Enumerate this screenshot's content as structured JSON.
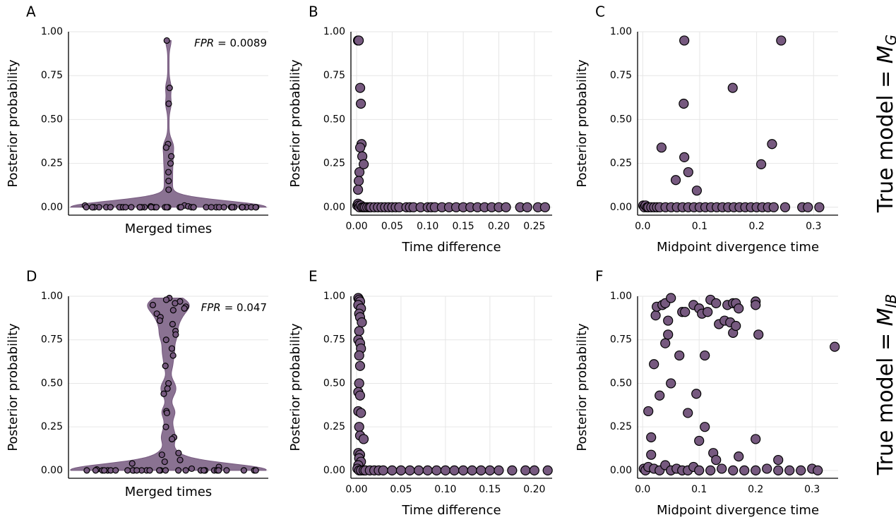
{
  "chart_data": [
    {
      "type": "violin",
      "panel_label": "A",
      "ylabel": "Posterior probability",
      "xlabel": "Merged times",
      "annotation": {
        "name": "FPR",
        "text": "= 0.0089"
      },
      "color": "#76597f",
      "ylim": [
        -0.045,
        1.0
      ],
      "yticks": [
        {
          "value": 0,
          "label": "0.00"
        },
        {
          "value": 0.25,
          "label": "0.25"
        },
        {
          "value": 0.5,
          "label": "0.50"
        },
        {
          "value": 0.75,
          "label": "0.75"
        },
        {
          "value": 1,
          "label": "1.00"
        }
      ],
      "values": [
        0.95,
        0.68,
        0.59,
        0.36,
        0.34,
        0.29,
        0.25,
        0.2,
        0.15,
        0.1,
        0.01,
        0.01,
        0.005,
        0.005,
        0,
        0,
        0,
        0,
        0,
        0,
        0,
        0,
        0,
        0,
        0,
        0,
        0,
        0,
        0,
        0,
        0,
        0,
        0,
        0,
        0,
        0,
        0,
        0,
        0,
        0,
        0,
        0,
        0,
        0,
        0,
        0,
        0,
        0,
        0,
        0,
        0,
        0,
        0,
        0,
        0,
        0,
        0,
        0
      ]
    },
    {
      "type": "scatter",
      "panel_label": "B",
      "ylabel": "Posterior probability",
      "xlabel": "Time difference",
      "color": "#76597f",
      "xlim": [
        -0.008,
        0.275
      ],
      "ylim": [
        -0.045,
        1.0
      ],
      "xticks": [
        {
          "value": 0,
          "label": "0.00"
        },
        {
          "value": 0.05,
          "label": "0.05"
        },
        {
          "value": 0.1,
          "label": "0.10"
        },
        {
          "value": 0.15,
          "label": "0.15"
        },
        {
          "value": 0.2,
          "label": "0.20"
        },
        {
          "value": 0.25,
          "label": "0.25"
        }
      ],
      "yticks": [
        {
          "value": 0,
          "label": "0.00"
        },
        {
          "value": 0.25,
          "label": "0.25"
        },
        {
          "value": 0.5,
          "label": "0.50"
        },
        {
          "value": 0.75,
          "label": "0.75"
        },
        {
          "value": 1,
          "label": "1.00"
        }
      ],
      "x": [
        0.002,
        0.003,
        0.005,
        0.006,
        0.007,
        0.005,
        0.008,
        0.004,
        0.01,
        0.003,
        0.002,
        0.001,
        0.002,
        0.003,
        0.004,
        0.006,
        0.008,
        0.01,
        0.012,
        0.015,
        0.018,
        0.02,
        0.025,
        0.03,
        0.035,
        0.04,
        0.045,
        0.05,
        0.055,
        0.06,
        0.07,
        0.075,
        0.08,
        0.09,
        0.1,
        0.105,
        0.11,
        0.12,
        0.13,
        0.14,
        0.15,
        0.16,
        0.17,
        0.18,
        0.19,
        0.2,
        0.21,
        0.23,
        0.24,
        0.255,
        0.265
      ],
      "y": [
        0.95,
        0.95,
        0.68,
        0.59,
        0.36,
        0.34,
        0.29,
        0.2,
        0.245,
        0.15,
        0.1,
        0.01,
        0.02,
        0.01,
        0,
        0.01,
        0,
        0,
        0,
        0,
        0,
        0,
        0,
        0,
        0,
        0,
        0,
        0,
        0,
        0,
        0,
        0,
        0,
        0,
        0,
        0,
        0,
        0,
        0,
        0,
        0,
        0,
        0,
        0,
        0,
        0,
        0,
        0,
        0,
        0,
        0
      ]
    },
    {
      "type": "scatter",
      "panel_label": "C",
      "ylabel": "Posterior probability",
      "xlabel": "Midpoint divergence time",
      "color": "#76597f",
      "xlim": [
        -0.009,
        0.343
      ],
      "ylim": [
        -0.045,
        1.0
      ],
      "xticks": [
        {
          "value": 0,
          "label": "0.0"
        },
        {
          "value": 0.1,
          "label": "0.1"
        },
        {
          "value": 0.2,
          "label": "0.2"
        },
        {
          "value": 0.3,
          "label": "0.3"
        }
      ],
      "yticks": [
        {
          "value": 0,
          "label": "0.00"
        },
        {
          "value": 0.25,
          "label": "0.25"
        },
        {
          "value": 0.5,
          "label": "0.50"
        },
        {
          "value": 0.75,
          "label": "0.75"
        },
        {
          "value": 1,
          "label": "1.00"
        }
      ],
      "x": [
        0.073,
        0.243,
        0.158,
        0.072,
        0.227,
        0.033,
        0.073,
        0.058,
        0.08,
        0.095,
        0.208,
        0.001,
        0.003,
        0.005,
        0.008,
        0.01,
        0.015,
        0.02,
        0.025,
        0.03,
        0.04,
        0.05,
        0.06,
        0.07,
        0.08,
        0.09,
        0.1,
        0.11,
        0.12,
        0.13,
        0.14,
        0.15,
        0.16,
        0.17,
        0.18,
        0.19,
        0.2,
        0.21,
        0.22,
        0.23,
        0.25,
        0.28,
        0.29,
        0.31
      ],
      "y": [
        0.95,
        0.95,
        0.68,
        0.59,
        0.36,
        0.34,
        0.285,
        0.155,
        0.2,
        0.095,
        0.245,
        0.01,
        0,
        0.01,
        0,
        0,
        0,
        0,
        0,
        0,
        0,
        0,
        0,
        0,
        0,
        0,
        0,
        0,
        0,
        0,
        0,
        0,
        0,
        0,
        0,
        0,
        0,
        0,
        0,
        0,
        0,
        0,
        0,
        0
      ]
    },
    {
      "type": "violin",
      "panel_label": "D",
      "ylabel": "Posterior probability",
      "xlabel": "Merged times",
      "annotation": {
        "name": "FPR",
        "text": "= 0.047"
      },
      "color": "#76597f",
      "ylim": [
        -0.045,
        1.0
      ],
      "yticks": [
        {
          "value": 0,
          "label": "0.00"
        },
        {
          "value": 0.25,
          "label": "0.25"
        },
        {
          "value": 0.5,
          "label": "0.50"
        },
        {
          "value": 0.75,
          "label": "0.75"
        },
        {
          "value": 1,
          "label": "1.00"
        }
      ],
      "values": [
        0.99,
        0.98,
        0.97,
        0.96,
        0.95,
        0.94,
        0.93,
        0.92,
        0.9,
        0.88,
        0.86,
        0.84,
        0.8,
        0.78,
        0.75,
        0.7,
        0.66,
        0.6,
        0.5,
        0.47,
        0.44,
        0.34,
        0.33,
        0.25,
        0.19,
        0.18,
        0.1,
        0.09,
        0.06,
        0.05,
        0.04,
        0.02,
        0.01,
        0.005,
        0,
        0,
        0,
        0,
        0,
        0,
        0,
        0,
        0,
        0,
        0,
        0,
        0,
        0,
        0,
        0,
        0,
        0,
        0,
        0,
        0,
        0,
        0,
        0,
        0,
        0,
        0,
        0,
        0,
        0
      ]
    },
    {
      "type": "scatter",
      "panel_label": "E",
      "ylabel": "Posterior probability",
      "xlabel": "Time difference",
      "color": "#76597f",
      "xlim": [
        -0.0063,
        0.22
      ],
      "ylim": [
        -0.045,
        1.0
      ],
      "xticks": [
        {
          "value": 0,
          "label": "0.00"
        },
        {
          "value": 0.05,
          "label": "0.05"
        },
        {
          "value": 0.1,
          "label": "0.10"
        },
        {
          "value": 0.15,
          "label": "0.15"
        },
        {
          "value": 0.2,
          "label": "0.20"
        }
      ],
      "yticks": [
        {
          "value": 0,
          "label": "0.00"
        },
        {
          "value": 0.25,
          "label": "0.25"
        },
        {
          "value": 0.5,
          "label": "0.50"
        },
        {
          "value": 0.75,
          "label": "0.75"
        },
        {
          "value": 1,
          "label": "1.00"
        }
      ],
      "x": [
        0.002,
        0.003,
        0.004,
        0.002,
        0.005,
        0.003,
        0.004,
        0.006,
        0.003,
        0.002,
        0.004,
        0.005,
        0.003,
        0.004,
        0.003,
        0.002,
        0.004,
        0.002,
        0.005,
        0.003,
        0.004,
        0.008,
        0.002,
        0.004,
        0.003,
        0.005,
        0.002,
        0.001,
        0.003,
        0.005,
        0.008,
        0.01,
        0.015,
        0.02,
        0.025,
        0.03,
        0.04,
        0.05,
        0.06,
        0.07,
        0.08,
        0.09,
        0.1,
        0.11,
        0.12,
        0.13,
        0.14,
        0.15,
        0.16,
        0.175,
        0.19,
        0.2,
        0.215
      ],
      "y": [
        0.99,
        0.98,
        0.97,
        0.95,
        0.93,
        0.9,
        0.88,
        0.85,
        0.8,
        0.75,
        0.73,
        0.7,
        0.66,
        0.6,
        0.5,
        0.45,
        0.43,
        0.34,
        0.33,
        0.25,
        0.2,
        0.18,
        0.1,
        0.09,
        0.07,
        0.05,
        0.03,
        0.01,
        0,
        0,
        0,
        0,
        0,
        0,
        0,
        0,
        0,
        0,
        0,
        0,
        0,
        0,
        0,
        0,
        0,
        0,
        0,
        0,
        0,
        0,
        0,
        0,
        0
      ]
    },
    {
      "type": "scatter",
      "panel_label": "F",
      "ylabel": "Posterior probability",
      "xlabel": "Midpoint divergence time",
      "color": "#76597f",
      "xlim": [
        -0.009,
        0.346
      ],
      "ylim": [
        -0.045,
        1.0
      ],
      "xticks": [
        {
          "value": 0,
          "label": "0.0"
        },
        {
          "value": 0.1,
          "label": "0.1"
        },
        {
          "value": 0.2,
          "label": "0.2"
        },
        {
          "value": 0.3,
          "label": "0.3"
        }
      ],
      "yticks": [
        {
          "value": 0,
          "label": "0.00"
        },
        {
          "value": 0.25,
          "label": "0.25"
        },
        {
          "value": 0.5,
          "label": "0.50"
        },
        {
          "value": 0.75,
          "label": "0.75"
        },
        {
          "value": 1,
          "label": "1.00"
        }
      ],
      "x": [
        0.01,
        0.015,
        0.015,
        0.02,
        0.023,
        0.025,
        0.03,
        0.035,
        0.04,
        0.04,
        0.045,
        0.045,
        0.05,
        0.05,
        0.065,
        0.07,
        0.075,
        0.08,
        0.09,
        0.095,
        0.1,
        0.1,
        0.105,
        0.11,
        0.11,
        0.115,
        0.12,
        0.125,
        0.13,
        0.13,
        0.135,
        0.145,
        0.15,
        0.155,
        0.16,
        0.16,
        0.165,
        0.165,
        0.17,
        0.17,
        0.2,
        0.2,
        0.2,
        0.205,
        0.24,
        0.34,
        0.002,
        0.005,
        0.01,
        0.02,
        0.03,
        0.04,
        0.05,
        0.06,
        0.07,
        0.08,
        0.09,
        0.1,
        0.12,
        0.14,
        0.16,
        0.18,
        0.2,
        0.22,
        0.24,
        0.26,
        0.28,
        0.3,
        0.31
      ],
      "y": [
        0.34,
        0.19,
        0.09,
        0.61,
        0.89,
        0.94,
        0.43,
        0.95,
        0.96,
        0.73,
        0.86,
        0.78,
        0.99,
        0.5,
        0.66,
        0.91,
        0.91,
        0.33,
        0.95,
        0.44,
        0.93,
        0.17,
        0.9,
        0.25,
        0.66,
        0.91,
        0.98,
        0.1,
        0.06,
        0.96,
        0.84,
        0.86,
        0.95,
        0.85,
        0.96,
        0.79,
        0.83,
        0.96,
        0.93,
        0.08,
        0.97,
        0.18,
        0.95,
        0.78,
        0.06,
        0.71,
        0.01,
        0,
        0.02,
        0.01,
        0,
        0.03,
        0,
        0.01,
        0,
        0,
        0.02,
        0,
        0,
        0.01,
        0,
        0,
        0,
        0.01,
        0,
        0,
        0,
        0.01,
        0
      ]
    }
  ],
  "row_labels": [
    {
      "prefix": "True model = ",
      "symbol": "M",
      "subscript": "G"
    },
    {
      "prefix": "True model = ",
      "symbol": "M",
      "subscript": "IB"
    }
  ]
}
